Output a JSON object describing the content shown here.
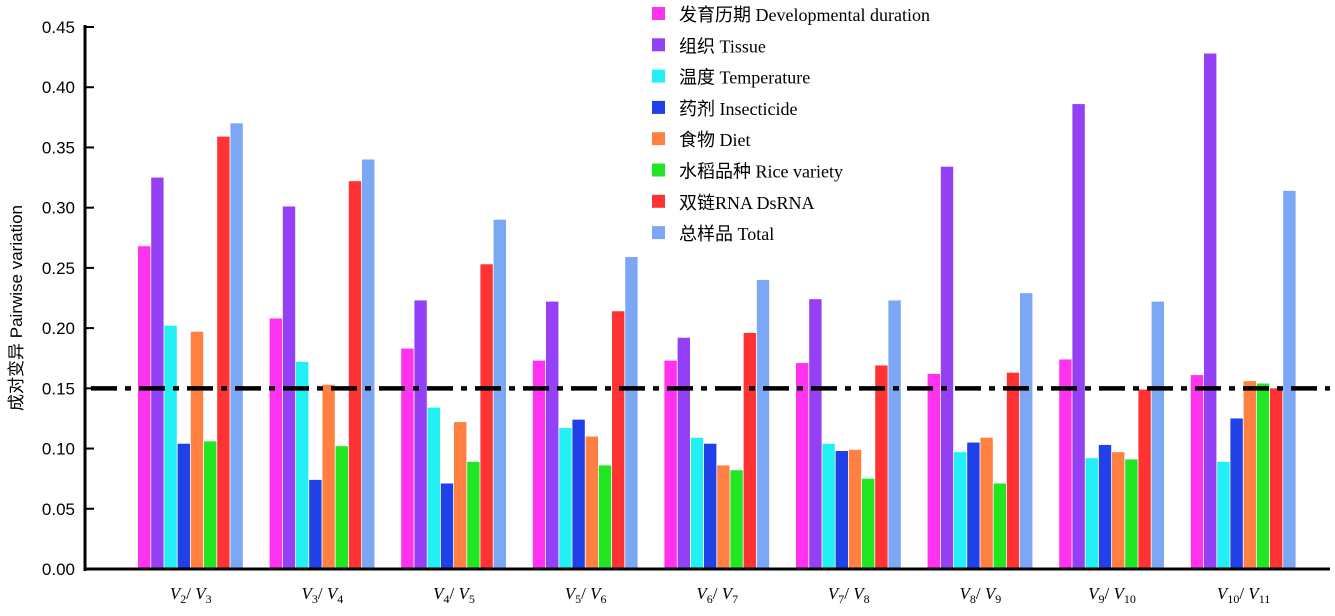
{
  "chart_data": {
    "type": "bar",
    "ylabel": "成对变异  Pairwise variation",
    "ylim": [
      0,
      0.45
    ],
    "yticks": [
      "0.00",
      "0.05",
      "0.10",
      "0.15",
      "0.20",
      "0.25",
      "0.30",
      "0.35",
      "0.40",
      "0.45"
    ],
    "categories": [
      "V2/V3",
      "V3/V4",
      "V4/V5",
      "V5/V6",
      "V6/V7",
      "V7/V8",
      "V8/V9",
      "V9/V10",
      "V10/V11"
    ],
    "category_parts": [
      [
        "2",
        "3"
      ],
      [
        "3",
        "4"
      ],
      [
        "4",
        "5"
      ],
      [
        "5",
        "6"
      ],
      [
        "6",
        "7"
      ],
      [
        "7",
        "8"
      ],
      [
        "8",
        "9"
      ],
      [
        "9",
        "10"
      ],
      [
        "10",
        "11"
      ]
    ],
    "threshold": 0.15,
    "legend_position": "top-right",
    "series": [
      {
        "name": "发育历期  Developmental duration",
        "color": "#ff33ee",
        "values": [
          0.268,
          0.208,
          0.183,
          0.173,
          0.173,
          0.171,
          0.162,
          0.174,
          0.161
        ]
      },
      {
        "name": "组织  Tissue",
        "color": "#9440f5",
        "values": [
          0.325,
          0.301,
          0.223,
          0.222,
          0.192,
          0.224,
          0.334,
          0.386,
          0.428
        ]
      },
      {
        "name": "温度  Temperature",
        "color": "#22f0f5",
        "values": [
          0.202,
          0.172,
          0.134,
          0.117,
          0.109,
          0.104,
          0.097,
          0.092,
          0.089
        ]
      },
      {
        "name": "药剂  Insecticide",
        "color": "#2040e8",
        "values": [
          0.104,
          0.074,
          0.071,
          0.124,
          0.104,
          0.098,
          0.105,
          0.103,
          0.125
        ]
      },
      {
        "name": "食物  Diet",
        "color": "#ff8040",
        "values": [
          0.197,
          0.153,
          0.122,
          0.11,
          0.086,
          0.099,
          0.109,
          0.097,
          0.156
        ]
      },
      {
        "name": "水稻品种 Rice variety",
        "color": "#22e622",
        "values": [
          0.106,
          0.102,
          0.089,
          0.086,
          0.082,
          0.075,
          0.071,
          0.091,
          0.154
        ]
      },
      {
        "name": "双链RNA  DsRNA",
        "color": "#ff3333",
        "values": [
          0.359,
          0.322,
          0.253,
          0.214,
          0.196,
          0.169,
          0.163,
          0.149,
          0.15
        ]
      },
      {
        "name": "总样品  Total",
        "color": "#7ba7f5",
        "values": [
          0.37,
          0.34,
          0.29,
          0.259,
          0.24,
          0.223,
          0.229,
          0.222,
          0.314
        ]
      }
    ]
  }
}
